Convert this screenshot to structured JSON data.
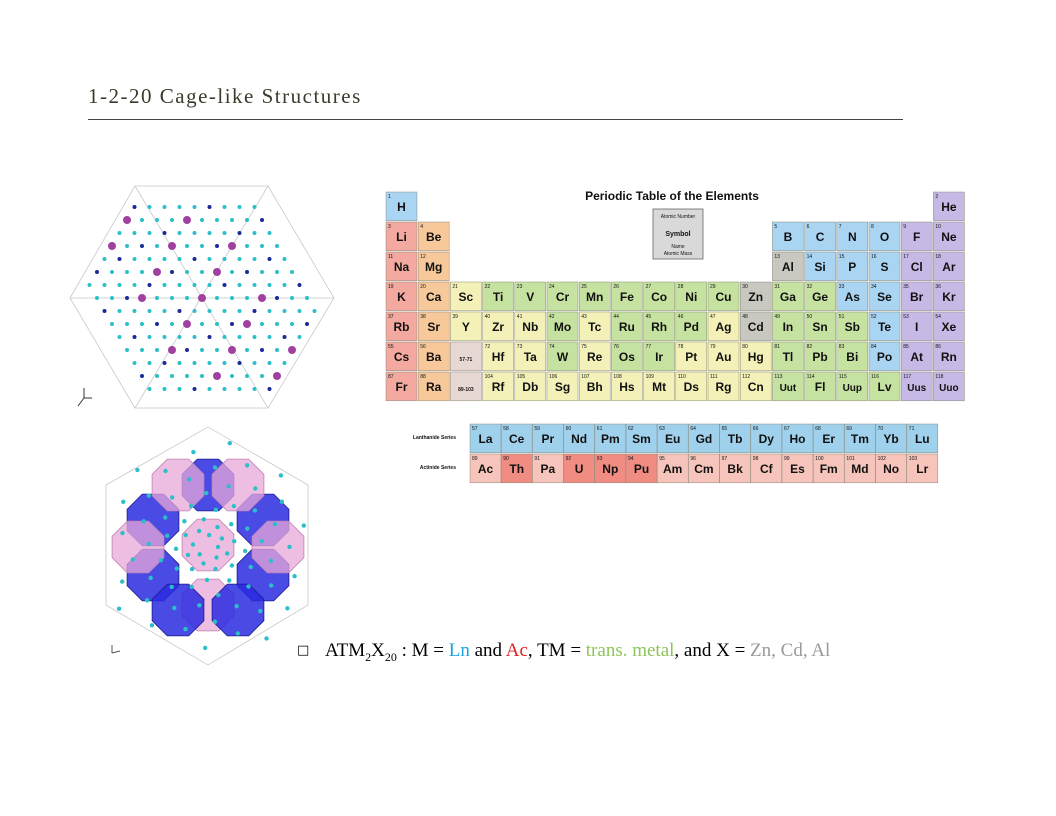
{
  "slide": {
    "title": "1-2-20 Cage-like Structures"
  },
  "periodic_table": {
    "title": "Periodic Table of the Elements",
    "legend": [
      "Atomic Number",
      "Symbol",
      "Name",
      "Atomic Mass"
    ],
    "lanthanide_label": "Lanthanide Series",
    "actinide_label": "Actinide Series",
    "colors": {
      "alkali": "#f4a9a0",
      "alkaline": "#f7c99a",
      "transition": "#f4f1b8",
      "transition_hl": "#c6e2a0",
      "metalloid_grey": "#c8c8c0",
      "post": "#c6e2a0",
      "nonmetal": "#a9d4f2",
      "halogen": "#c7b9e6",
      "noble": "#c7b9e6",
      "lanth": "#9fd0ec",
      "actin": "#f6c4bb",
      "actin_hl": "#f08c82"
    }
  },
  "caption": {
    "bullet": "□",
    "formula_base": "ATM",
    "sub1": "2",
    "x": "X",
    "sub2": "20",
    "part1": " : M = ",
    "ln": "Ln",
    "and1": " and ",
    "ac": "Ac",
    "part2": ", TM = ",
    "tm": "trans. metal",
    "part3": ", and X = ",
    "x_elems": "Zn, Cd, Al",
    "colors": {
      "ln": "#1aa3e0",
      "ac": "#e02020",
      "tm": "#8fc45a",
      "x": "#9a9a9a"
    }
  },
  "elements_main": [
    [
      "H",
      1,
      1,
      1,
      "nonmetal"
    ],
    [
      "He",
      2,
      1,
      18,
      "noble"
    ],
    [
      "Li",
      3,
      2,
      1,
      "alkali"
    ],
    [
      "Be",
      4,
      2,
      2,
      "alkaline"
    ],
    [
      "B",
      5,
      2,
      13,
      "nonmetal"
    ],
    [
      "C",
      6,
      2,
      14,
      "nonmetal"
    ],
    [
      "N",
      7,
      2,
      15,
      "nonmetal"
    ],
    [
      "O",
      8,
      2,
      16,
      "nonmetal"
    ],
    [
      "F",
      9,
      2,
      17,
      "halogen"
    ],
    [
      "Ne",
      10,
      2,
      18,
      "noble"
    ],
    [
      "Na",
      11,
      3,
      1,
      "alkali"
    ],
    [
      "Mg",
      12,
      3,
      2,
      "alkaline"
    ],
    [
      "Al",
      13,
      3,
      13,
      "metalloid_grey"
    ],
    [
      "Si",
      14,
      3,
      14,
      "nonmetal"
    ],
    [
      "P",
      15,
      3,
      15,
      "nonmetal"
    ],
    [
      "S",
      16,
      3,
      16,
      "nonmetal"
    ],
    [
      "Cl",
      17,
      3,
      17,
      "halogen"
    ],
    [
      "Ar",
      18,
      3,
      18,
      "noble"
    ],
    [
      "K",
      19,
      4,
      1,
      "alkali"
    ],
    [
      "Ca",
      20,
      4,
      2,
      "alkaline"
    ],
    [
      "Sc",
      21,
      4,
      3,
      "transition"
    ],
    [
      "Ti",
      22,
      4,
      4,
      "transition_hl"
    ],
    [
      "V",
      23,
      4,
      5,
      "transition_hl"
    ],
    [
      "Cr",
      24,
      4,
      6,
      "transition_hl"
    ],
    [
      "Mn",
      25,
      4,
      7,
      "transition_hl"
    ],
    [
      "Fe",
      26,
      4,
      8,
      "transition_hl"
    ],
    [
      "Co",
      27,
      4,
      9,
      "transition_hl"
    ],
    [
      "Ni",
      28,
      4,
      10,
      "transition_hl"
    ],
    [
      "Cu",
      29,
      4,
      11,
      "transition_hl"
    ],
    [
      "Zn",
      30,
      4,
      12,
      "metalloid_grey"
    ],
    [
      "Ga",
      31,
      4,
      13,
      "post"
    ],
    [
      "Ge",
      32,
      4,
      14,
      "post"
    ],
    [
      "As",
      33,
      4,
      15,
      "nonmetal"
    ],
    [
      "Se",
      34,
      4,
      16,
      "nonmetal"
    ],
    [
      "Br",
      35,
      4,
      17,
      "halogen"
    ],
    [
      "Kr",
      36,
      4,
      18,
      "noble"
    ],
    [
      "Rb",
      37,
      5,
      1,
      "alkali"
    ],
    [
      "Sr",
      38,
      5,
      2,
      "alkaline"
    ],
    [
      "Y",
      39,
      5,
      3,
      "transition"
    ],
    [
      "Zr",
      40,
      5,
      4,
      "transition"
    ],
    [
      "Nb",
      41,
      5,
      5,
      "transition"
    ],
    [
      "Mo",
      42,
      5,
      6,
      "transition_hl"
    ],
    [
      "Tc",
      43,
      5,
      7,
      "transition"
    ],
    [
      "Ru",
      44,
      5,
      8,
      "transition_hl"
    ],
    [
      "Rh",
      45,
      5,
      9,
      "transition_hl"
    ],
    [
      "Pd",
      46,
      5,
      10,
      "transition_hl"
    ],
    [
      "Ag",
      47,
      5,
      11,
      "transition"
    ],
    [
      "Cd",
      48,
      5,
      12,
      "metalloid_grey"
    ],
    [
      "In",
      49,
      5,
      13,
      "post"
    ],
    [
      "Sn",
      50,
      5,
      14,
      "post"
    ],
    [
      "Sb",
      51,
      5,
      15,
      "post"
    ],
    [
      "Te",
      52,
      5,
      16,
      "nonmetal"
    ],
    [
      "I",
      53,
      5,
      17,
      "halogen"
    ],
    [
      "Xe",
      54,
      5,
      18,
      "noble"
    ],
    [
      "Cs",
      55,
      6,
      1,
      "alkali"
    ],
    [
      "Ba",
      56,
      6,
      2,
      "alkaline"
    ],
    [
      "57-71",
      0,
      6,
      3,
      "lanth_blank"
    ],
    [
      "Hf",
      72,
      6,
      4,
      "transition"
    ],
    [
      "Ta",
      73,
      6,
      5,
      "transition"
    ],
    [
      "W",
      74,
      6,
      6,
      "transition_hl"
    ],
    [
      "Re",
      75,
      6,
      7,
      "transition"
    ],
    [
      "Os",
      76,
      6,
      8,
      "transition_hl"
    ],
    [
      "Ir",
      77,
      6,
      9,
      "transition_hl"
    ],
    [
      "Pt",
      78,
      6,
      10,
      "transition"
    ],
    [
      "Au",
      79,
      6,
      11,
      "transition"
    ],
    [
      "Hg",
      80,
      6,
      12,
      "transition"
    ],
    [
      "Tl",
      81,
      6,
      13,
      "post"
    ],
    [
      "Pb",
      82,
      6,
      14,
      "post"
    ],
    [
      "Bi",
      83,
      6,
      15,
      "post"
    ],
    [
      "Po",
      84,
      6,
      16,
      "nonmetal"
    ],
    [
      "At",
      85,
      6,
      17,
      "halogen"
    ],
    [
      "Rn",
      86,
      6,
      18,
      "noble"
    ],
    [
      "Fr",
      87,
      7,
      1,
      "alkali"
    ],
    [
      "Ra",
      88,
      7,
      2,
      "alkaline"
    ],
    [
      "89-103",
      0,
      7,
      3,
      "actin_blank"
    ],
    [
      "Rf",
      104,
      7,
      4,
      "transition"
    ],
    [
      "Db",
      105,
      7,
      5,
      "transition"
    ],
    [
      "Sg",
      106,
      7,
      6,
      "transition"
    ],
    [
      "Bh",
      107,
      7,
      7,
      "transition"
    ],
    [
      "Hs",
      108,
      7,
      8,
      "transition"
    ],
    [
      "Mt",
      109,
      7,
      9,
      "transition"
    ],
    [
      "Ds",
      110,
      7,
      10,
      "transition"
    ],
    [
      "Rg",
      111,
      7,
      11,
      "transition"
    ],
    [
      "Cn",
      112,
      7,
      12,
      "transition"
    ],
    [
      "Uut",
      113,
      7,
      13,
      "post"
    ],
    [
      "Fl",
      114,
      7,
      14,
      "post"
    ],
    [
      "Uup",
      115,
      7,
      15,
      "post"
    ],
    [
      "Lv",
      116,
      7,
      16,
      "post"
    ],
    [
      "Uus",
      117,
      7,
      17,
      "halogen"
    ],
    [
      "Uuo",
      118,
      7,
      18,
      "noble"
    ]
  ],
  "lanthanides": [
    [
      "La",
      57
    ],
    [
      "Ce",
      58
    ],
    [
      "Pr",
      59
    ],
    [
      "Nd",
      60
    ],
    [
      "Pm",
      61
    ],
    [
      "Sm",
      62
    ],
    [
      "Eu",
      63
    ],
    [
      "Gd",
      64
    ],
    [
      "Tb",
      65
    ],
    [
      "Dy",
      66
    ],
    [
      "Ho",
      67
    ],
    [
      "Er",
      68
    ],
    [
      "Tm",
      69
    ],
    [
      "Yb",
      70
    ],
    [
      "Lu",
      71
    ]
  ],
  "actinides": [
    [
      "Ac",
      89
    ],
    [
      "Th",
      90
    ],
    [
      "Pa",
      91
    ],
    [
      "U",
      92
    ],
    [
      "Np",
      93
    ],
    [
      "Pu",
      94
    ],
    [
      "Am",
      95
    ],
    [
      "Cm",
      96
    ],
    [
      "Bk",
      97
    ],
    [
      "Cf",
      98
    ],
    [
      "Es",
      99
    ],
    [
      "Fm",
      100
    ],
    [
      "Md",
      101
    ],
    [
      "No",
      102
    ],
    [
      "Lr",
      103
    ]
  ],
  "actinides_highlight": [
    "Th",
    "U",
    "Np",
    "Pu"
  ]
}
